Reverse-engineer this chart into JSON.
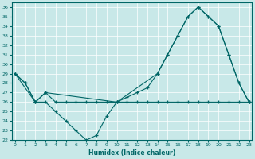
{
  "xlabel": "Humidex (Indice chaleur)",
  "bg_color": "#c8e8e8",
  "line_color": "#006666",
  "xlim": [
    -0.3,
    23.3
  ],
  "ylim": [
    22,
    36.5
  ],
  "xticks": [
    0,
    1,
    2,
    3,
    4,
    5,
    6,
    7,
    8,
    9,
    10,
    11,
    12,
    13,
    14,
    15,
    16,
    17,
    18,
    19,
    20,
    21,
    22,
    23
  ],
  "yticks": [
    22,
    23,
    24,
    25,
    26,
    27,
    28,
    29,
    30,
    31,
    32,
    33,
    34,
    35,
    36
  ],
  "series1": {
    "x": [
      0,
      1,
      2,
      3,
      4,
      5,
      6,
      7,
      8,
      9,
      10,
      11,
      12,
      13,
      14,
      15,
      16,
      17,
      18,
      19,
      20,
      21,
      22,
      23
    ],
    "y": [
      29,
      28,
      26,
      26,
      25,
      24,
      23,
      22,
      22.5,
      24.5,
      26,
      26.5,
      27,
      27.5,
      29,
      31,
      33,
      35,
      36,
      35,
      34,
      31,
      28,
      26
    ]
  },
  "series2": {
    "x": [
      0,
      1,
      2,
      3,
      4,
      5,
      6,
      7,
      8,
      9,
      10,
      11,
      12,
      13,
      14,
      15,
      16,
      17,
      18,
      19,
      20,
      21,
      22,
      23
    ],
    "y": [
      29,
      28,
      26,
      27,
      26,
      26,
      26,
      26,
      26,
      26,
      26,
      26,
      26,
      26,
      26,
      26,
      26,
      26,
      26,
      26,
      26,
      26,
      26,
      26
    ]
  },
  "series3": {
    "x": [
      0,
      2,
      3,
      10,
      14,
      15,
      16,
      17,
      18,
      19,
      20,
      21,
      22,
      23
    ],
    "y": [
      29,
      26,
      27,
      26,
      29,
      31,
      33,
      35,
      36,
      35,
      34,
      31,
      28,
      26
    ]
  }
}
